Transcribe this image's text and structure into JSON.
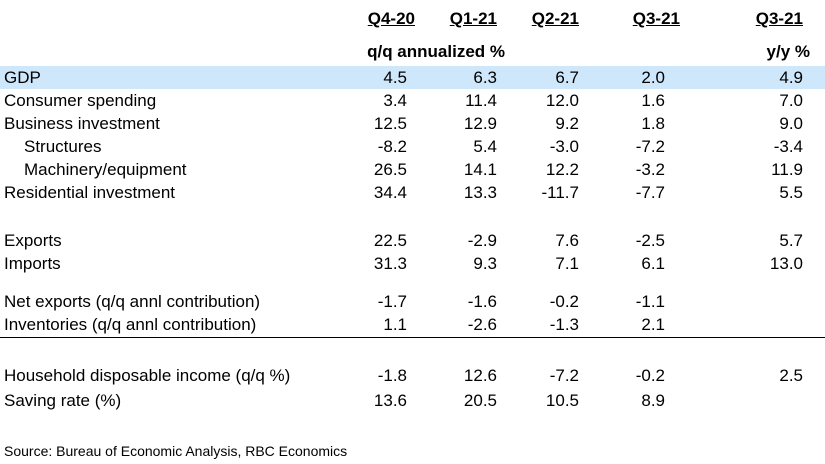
{
  "header": {
    "columns": [
      "Q4-20",
      "Q1-21",
      "Q2-21",
      "Q3-21",
      "Q3-21"
    ],
    "subheader_left": "q/q annualized %",
    "subheader_right": "y/y %"
  },
  "rows": [
    {
      "label": "GDP",
      "values": [
        "4.5",
        "6.3",
        "6.7",
        "2.0",
        "4.9"
      ]
    },
    {
      "label": "Consumer spending",
      "values": [
        "3.4",
        "11.4",
        "12.0",
        "1.6",
        "7.0"
      ]
    },
    {
      "label": "Business investment",
      "values": [
        "12.5",
        "12.9",
        "9.2",
        "1.8",
        "9.0"
      ]
    },
    {
      "label": "Structures",
      "values": [
        "-8.2",
        "5.4",
        "-3.0",
        "-7.2",
        "-3.4"
      ]
    },
    {
      "label": "Machinery/equipment",
      "values": [
        "26.5",
        "14.1",
        "12.2",
        "-3.2",
        "11.9"
      ]
    },
    {
      "label": "Residential investment",
      "values": [
        "34.4",
        "13.3",
        "-11.7",
        "-7.7",
        "5.5"
      ]
    },
    {
      "label": "Exports",
      "values": [
        "22.5",
        "-2.9",
        "7.6",
        "-2.5",
        "5.7"
      ]
    },
    {
      "label": "Imports",
      "values": [
        "31.3",
        "9.3",
        "7.1",
        "6.1",
        "13.0"
      ]
    },
    {
      "label": "Net exports (q/q annl contribution)",
      "values": [
        "-1.7",
        "-1.6",
        "-0.2",
        "-1.1",
        ""
      ]
    },
    {
      "label": "Inventories (q/q annl contribution)",
      "values": [
        "1.1",
        "-2.6",
        "-1.3",
        "2.1",
        ""
      ]
    },
    {
      "label": "Household disposable income (q/q %)",
      "values": [
        "-1.8",
        "12.6",
        "-7.2",
        "-0.2",
        "2.5"
      ]
    },
    {
      "label": "Saving rate (%)",
      "values": [
        "13.6",
        "20.5",
        "10.5",
        "8.9",
        ""
      ]
    }
  ],
  "source": "Source:  Bureau of Economic Analysis, RBC Economics"
}
